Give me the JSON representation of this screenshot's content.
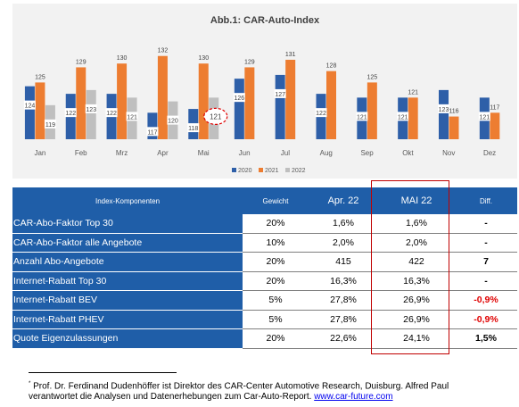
{
  "chart_data": {
    "type": "bar",
    "title": "Abb.1: CAR-Auto-Index",
    "categories": [
      "Jan",
      "Feb",
      "Mrz",
      "Apr",
      "Mai",
      "Jun",
      "Jul",
      "Aug",
      "Sep",
      "Okt",
      "Nov",
      "Dez"
    ],
    "series": [
      {
        "name": "2020",
        "color": "#2e5fa8",
        "values": [
          124,
          122,
          122,
          117,
          118,
          126,
          127,
          122,
          121,
          121,
          123,
          121
        ]
      },
      {
        "name": "2021",
        "color": "#ed7d31",
        "values": [
          125,
          129,
          130,
          132,
          130,
          129,
          131,
          128,
          125,
          121,
          116,
          117
        ]
      },
      {
        "name": "2022",
        "color": "#bfbfbf",
        "values": [
          119,
          123,
          121,
          120,
          121,
          null,
          null,
          null,
          null,
          null,
          null,
          null
        ]
      }
    ],
    "highlight": {
      "category": "Mai",
      "series": "2022",
      "value": 121,
      "style": "red dashed circle"
    },
    "ylim": [
      110,
      135
    ],
    "grid": false,
    "legend": "bottom"
  },
  "table": {
    "headers": [
      "Index-Komponenten",
      "Gewicht",
      "Apr. 22",
      "MAI 22",
      "Diff."
    ],
    "rows": [
      {
        "label": "CAR-Abo-Faktor Top 30",
        "weight": "20%",
        "apr": "1,6%",
        "mai": "1,6%",
        "diff": "-",
        "diff_negative": false
      },
      {
        "label": "CAR-Abo-Faktor alle Angebote",
        "weight": "10%",
        "apr": "2,0%",
        "mai": "2,0%",
        "diff": "-",
        "diff_negative": false
      },
      {
        "label": "Anzahl Abo-Angebote",
        "weight": "20%",
        "apr": "415",
        "mai": "422",
        "diff": "7",
        "diff_negative": false
      },
      {
        "label": "Internet-Rabatt Top 30",
        "weight": "20%",
        "apr": "16,3%",
        "mai": "16,3%",
        "diff": "-",
        "diff_negative": false
      },
      {
        "label": "Internet-Rabatt BEV",
        "weight": "5%",
        "apr": "27,8%",
        "mai": "26,9%",
        "diff": "-0,9%",
        "diff_negative": true
      },
      {
        "label": "Internet-Rabatt PHEV",
        "weight": "5%",
        "apr": "27,8%",
        "mai": "26,9%",
        "diff": "-0,9%",
        "diff_negative": true
      },
      {
        "label": "Quote Eigenzulassungen",
        "weight": "20%",
        "apr": "22,6%",
        "mai": "24,1%",
        "diff": "1,5%",
        "diff_negative": false
      }
    ]
  },
  "footnote": {
    "marker": "*",
    "text": "Prof. Dr. Ferdinand Dudenhöffer ist Direktor des CAR-Center Automotive Research, Duisburg. Alfred Paul verantwortet die Analysen und Datenerhebungen zum Car-Auto-Report.",
    "link": "www.car-future.com"
  }
}
